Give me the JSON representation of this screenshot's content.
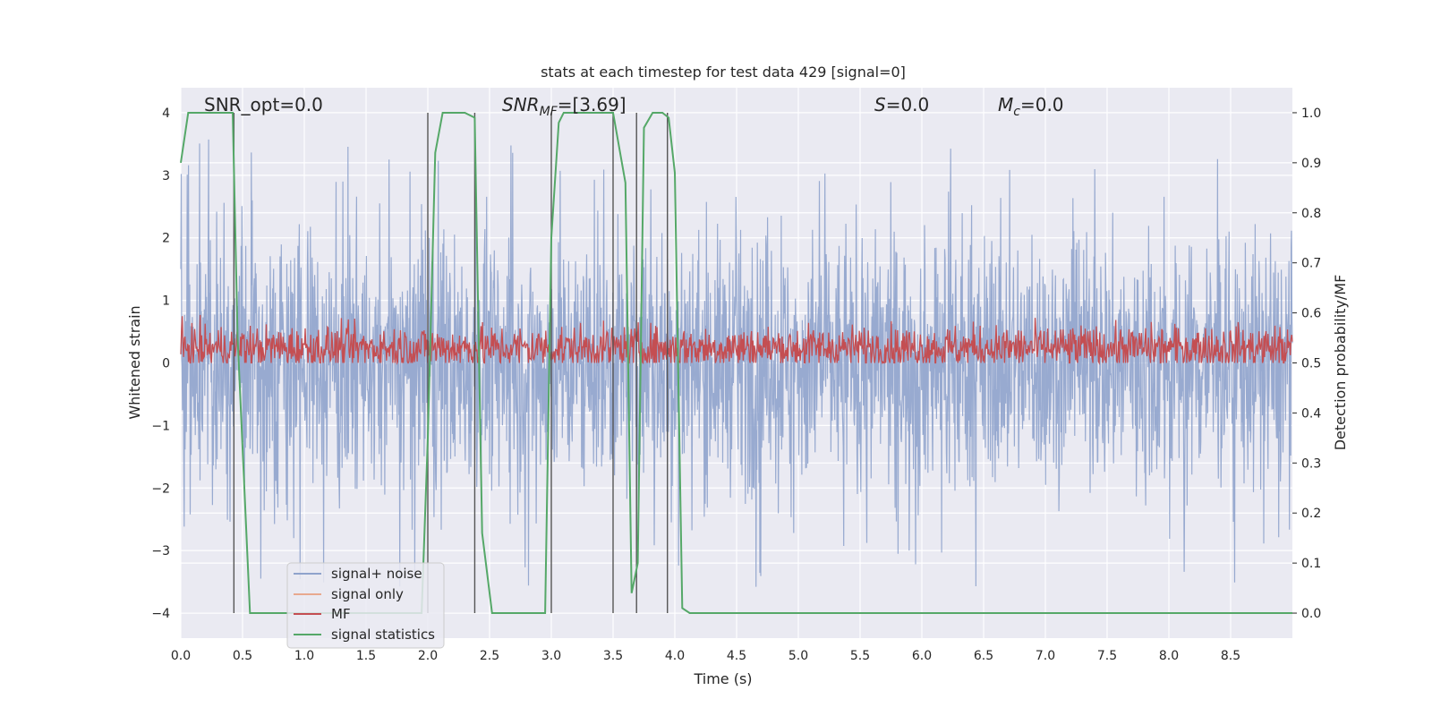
{
  "chart_data": {
    "type": "line",
    "title": "stats at each timestep for test data 429 [signal=0]",
    "xlabel": "Time (s)",
    "ylabel": "Whitened strain",
    "ylabel_right": "Detection probability/MF",
    "xlim": [
      0.0,
      9.0
    ],
    "ylim": [
      -4.4,
      4.4
    ],
    "ylim_right": [
      -0.05,
      1.05
    ],
    "x_ticks": [
      "0.0",
      "0.5",
      "1.0",
      "1.5",
      "2.0",
      "2.5",
      "3.0",
      "3.5",
      "4.0",
      "4.5",
      "5.0",
      "5.5",
      "6.0",
      "6.5",
      "7.0",
      "7.5",
      "8.0",
      "8.5"
    ],
    "y_ticks": [
      "−4",
      "−3",
      "−2",
      "−1",
      "0",
      "1",
      "2",
      "3",
      "4"
    ],
    "y_ticks_right": [
      "0.0",
      "0.1",
      "0.2",
      "0.3",
      "0.4",
      "0.5",
      "0.6",
      "0.7",
      "0.8",
      "0.9",
      "1.0"
    ],
    "grid": true,
    "legend_position": "lower-left",
    "annotations": {
      "snr_opt": "SNR_opt=0.0",
      "snr_mf_main": "SNR",
      "snr_mf_sub": "MF",
      "snr_mf_rest": "=[3.69]",
      "s_label": "S",
      "s_rest": "=0.0",
      "mc_main": "M",
      "mc_sub": "c",
      "mc_rest": "=0.0"
    },
    "series": [
      {
        "name": "signal+ noise",
        "color": "#8fa3cc",
        "axis": "left",
        "description_values": "dense noise, envelope roughly ±1.6 with spikes to about ±3.6",
        "envelope": 1.6,
        "peak_abs": 3.6
      },
      {
        "name": "signal only",
        "color": "#e8a98f",
        "axis": "left",
        "values_constant": 0.0
      },
      {
        "name": "MF",
        "color": "#c44e52",
        "axis": "right",
        "mean": 0.53,
        "range": [
          0.5,
          0.62
        ]
      },
      {
        "name": "signal statistics",
        "color": "#55a868",
        "axis": "right",
        "x": [
          0.0,
          0.06,
          0.3,
          0.42,
          0.46,
          0.56,
          1.95,
          2.0,
          2.06,
          2.12,
          2.3,
          2.38,
          2.44,
          2.52,
          2.95,
          3.0,
          3.06,
          3.1,
          3.4,
          3.5,
          3.6,
          3.65,
          3.7,
          3.75,
          3.82,
          3.9,
          3.95,
          4.0,
          4.06,
          4.12,
          9.0
        ],
        "y": [
          0.9,
          1.0,
          1.0,
          1.0,
          0.55,
          0.0,
          0.0,
          0.35,
          0.92,
          1.0,
          1.0,
          0.99,
          0.16,
          0.0,
          0.0,
          0.75,
          0.98,
          1.0,
          1.0,
          1.0,
          0.86,
          0.04,
          0.1,
          0.97,
          1.0,
          1.0,
          0.99,
          0.88,
          0.01,
          0.0,
          0.0
        ]
      }
    ],
    "vlines_x": [
      0.43,
      2.0,
      2.38,
      3.0,
      3.5,
      3.69,
      3.94
    ]
  }
}
